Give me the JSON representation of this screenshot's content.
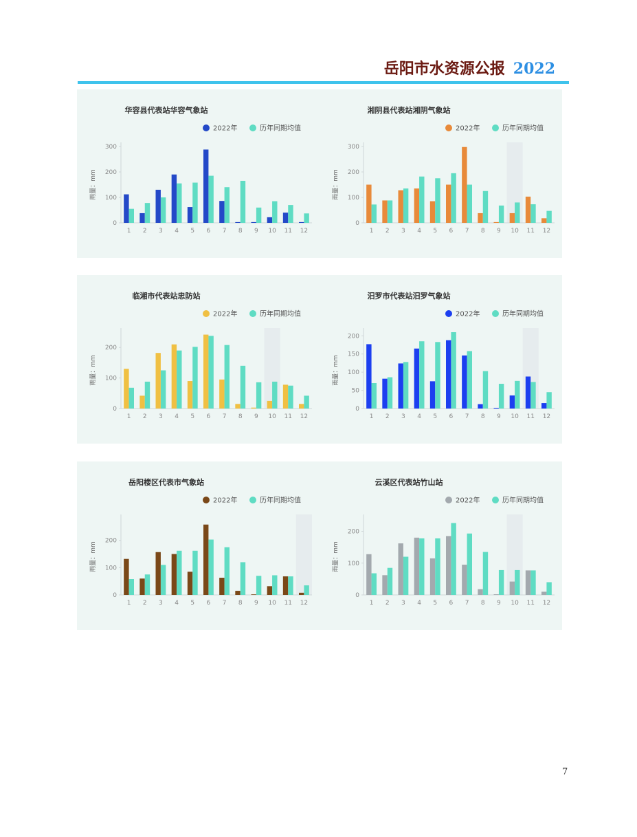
{
  "header": {
    "title": "岳阳市水资源公报",
    "year": "2022"
  },
  "page_number": "7",
  "colors": {
    "average": "#5fdcc3",
    "highlight_band": "#e6ecee",
    "axis": "#cfd6d8"
  },
  "chart_data": [
    {
      "type": "bar",
      "title": "华容县代表站华容气象站",
      "xlabel": "",
      "ylabel": "雨量：mm",
      "categories": [
        "1",
        "2",
        "3",
        "4",
        "5",
        "6",
        "7",
        "8",
        "9",
        "10",
        "11",
        "12"
      ],
      "ylim": [
        0,
        300
      ],
      "yticks": [
        0,
        100,
        200,
        300
      ],
      "highlight_category": null,
      "legend_position": "top",
      "series": [
        {
          "name": "2022年",
          "color": "#2449c8",
          "values": [
            112,
            38,
            130,
            190,
            62,
            288,
            86,
            3,
            3,
            22,
            40,
            3
          ]
        },
        {
          "name": "历年同期均值",
          "color": "#5fdcc3",
          "values": [
            55,
            78,
            100,
            155,
            158,
            185,
            140,
            165,
            60,
            85,
            70,
            37
          ]
        }
      ]
    },
    {
      "type": "bar",
      "title": "湘阴县代表站湘阴气象站",
      "xlabel": "",
      "ylabel": "雨量：mm",
      "categories": [
        "1",
        "2",
        "3",
        "4",
        "5",
        "6",
        "7",
        "8",
        "9",
        "10",
        "11",
        "12"
      ],
      "ylim": [
        0,
        300
      ],
      "yticks": [
        0,
        100,
        200,
        300
      ],
      "highlight_category": "10",
      "legend_position": "top-right",
      "series": [
        {
          "name": "2022年",
          "color": "#e88a3a",
          "values": [
            150,
            88,
            128,
            135,
            85,
            150,
            298,
            38,
            3,
            38,
            103,
            18
          ]
        },
        {
          "name": "历年同期均值",
          "color": "#5fdcc3",
          "values": [
            72,
            88,
            135,
            182,
            175,
            195,
            150,
            125,
            68,
            80,
            73,
            47
          ]
        }
      ]
    },
    {
      "type": "bar",
      "title": "临湘市代表站忠防站",
      "xlabel": "",
      "ylabel": "雨量：mm",
      "categories": [
        "1",
        "2",
        "3",
        "4",
        "5",
        "6",
        "7",
        "8",
        "9",
        "10",
        "11",
        "12"
      ],
      "ylim": [
        0,
        250
      ],
      "yticks": [
        0,
        100,
        200
      ],
      "highlight_category": "10",
      "legend_position": "top",
      "series": [
        {
          "name": "2022年",
          "color": "#f0c043",
          "values": [
            130,
            42,
            182,
            210,
            90,
            242,
            95,
            15,
            3,
            25,
            78,
            15
          ]
        },
        {
          "name": "历年同期均值",
          "color": "#5fdcc3",
          "values": [
            68,
            88,
            125,
            190,
            202,
            238,
            208,
            140,
            86,
            88,
            75,
            42
          ]
        }
      ]
    },
    {
      "type": "bar",
      "title": "汨罗市代表站汨罗气象站",
      "xlabel": "",
      "ylabel": "雨量：mm",
      "categories": [
        "1",
        "2",
        "3",
        "4",
        "5",
        "6",
        "7",
        "8",
        "9",
        "10",
        "11",
        "12"
      ],
      "ylim": [
        0,
        210
      ],
      "yticks": [
        0,
        50,
        100,
        150,
        200
      ],
      "highlight_category": "11",
      "legend_position": "top-right",
      "series": [
        {
          "name": "2022年",
          "color": "#1c3ff0",
          "values": [
            177,
            82,
            124,
            165,
            75,
            188,
            146,
            12,
            2,
            36,
            88,
            15
          ]
        },
        {
          "name": "历年同期均值",
          "color": "#5fdcc3",
          "values": [
            70,
            86,
            128,
            185,
            183,
            210,
            158,
            103,
            68,
            76,
            73,
            45
          ]
        }
      ]
    },
    {
      "type": "bar",
      "title": "岳阳楼区代表市气象站",
      "xlabel": "",
      "ylabel": "雨量：mm",
      "categories": [
        "1",
        "2",
        "3",
        "4",
        "5",
        "6",
        "7",
        "8",
        "9",
        "10",
        "11",
        "12"
      ],
      "ylim": [
        0,
        280
      ],
      "yticks": [
        0,
        100,
        200
      ],
      "highlight_category": "12",
      "legend_position": "top",
      "series": [
        {
          "name": "2022年",
          "color": "#7a4818",
          "values": [
            132,
            60,
            157,
            150,
            85,
            258,
            63,
            15,
            2,
            32,
            68,
            8
          ]
        },
        {
          "name": "历年同期均值",
          "color": "#5fdcc3",
          "values": [
            58,
            75,
            110,
            162,
            162,
            203,
            175,
            120,
            70,
            72,
            68,
            35
          ]
        }
      ]
    },
    {
      "type": "bar",
      "title": "云溪区代表站竹山站",
      "xlabel": "",
      "ylabel": "雨量：mm",
      "categories": [
        "1",
        "2",
        "3",
        "4",
        "5",
        "6",
        "7",
        "8",
        "9",
        "10",
        "11",
        "12"
      ],
      "ylim": [
        0,
        240
      ],
      "yticks": [
        0,
        100,
        200
      ],
      "highlight_category": "10",
      "legend_position": "top-right",
      "series": [
        {
          "name": "2022年",
          "color": "#a3a9ae",
          "values": [
            128,
            62,
            162,
            180,
            115,
            185,
            95,
            18,
            2,
            42,
            77,
            10
          ]
        },
        {
          "name": "历年同期均值",
          "color": "#5fdcc3",
          "values": [
            68,
            85,
            120,
            178,
            178,
            226,
            193,
            135,
            78,
            78,
            77,
            40
          ]
        }
      ]
    }
  ]
}
